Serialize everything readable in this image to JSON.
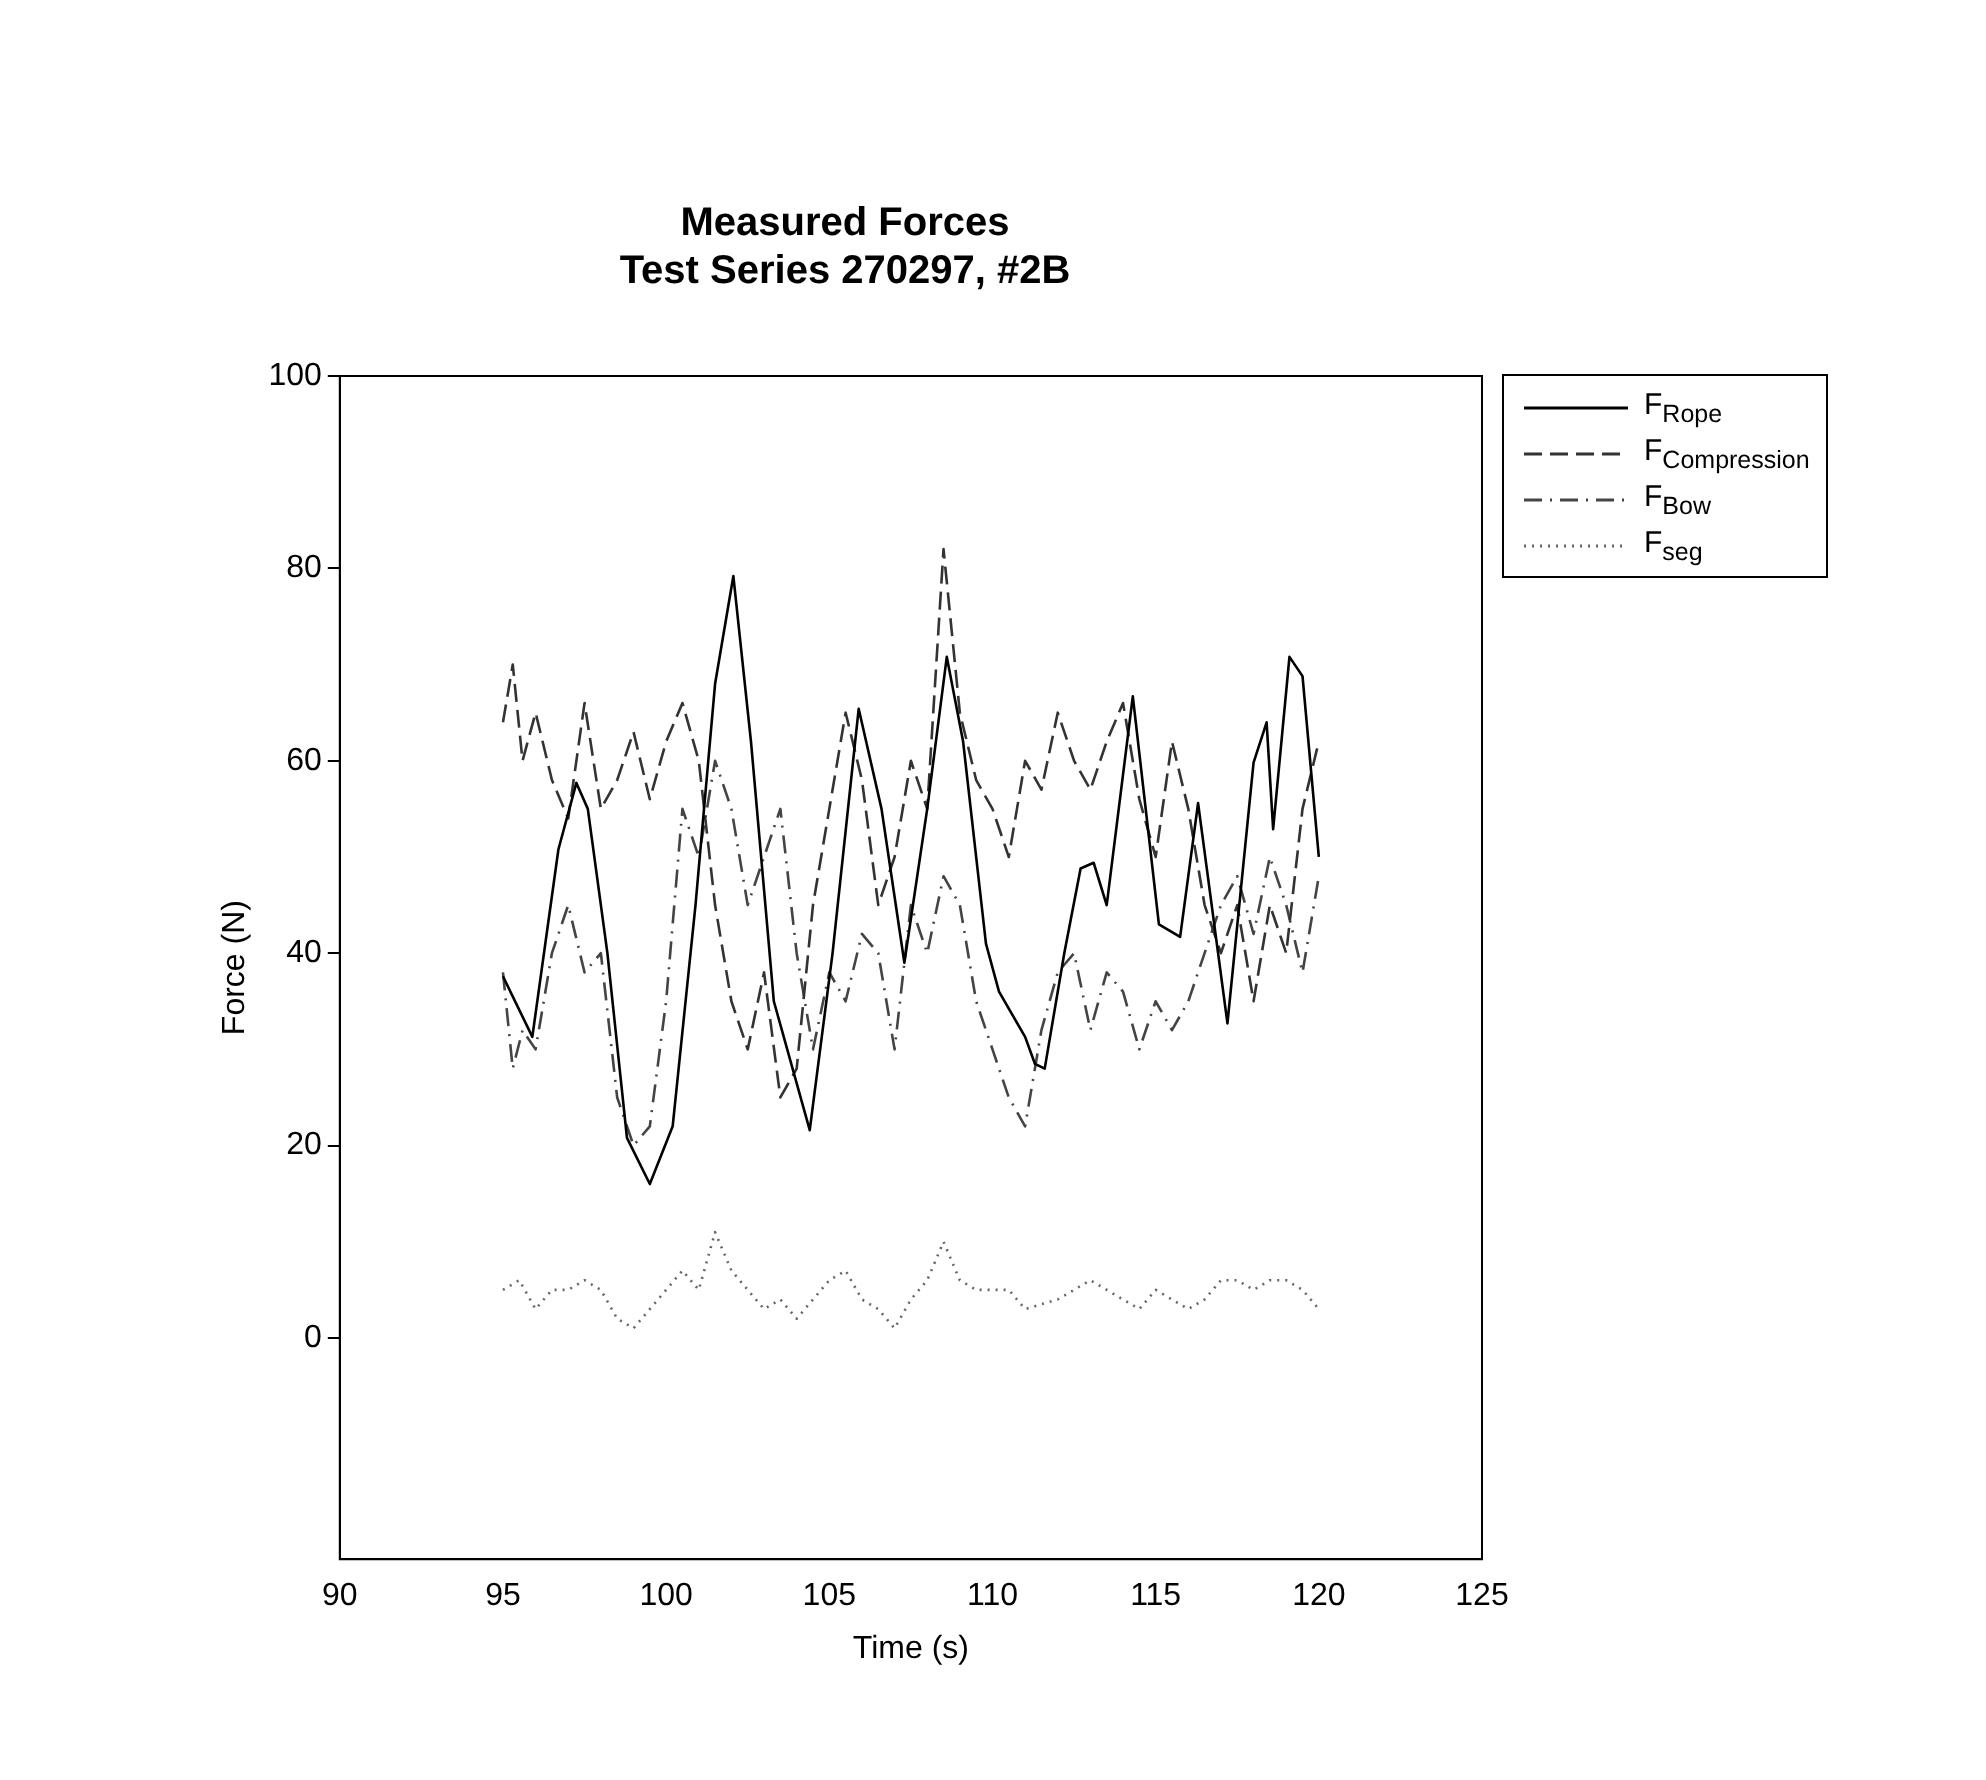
{
  "chart_data": {
    "type": "line",
    "title": "Measured Forces",
    "subtitle": "Test Series 270297, #2B",
    "xlabel": "Time (s)",
    "ylabel": "Force (N)",
    "xlim": [
      90,
      125
    ],
    "xticks": [
      90,
      95,
      100,
      105,
      110,
      115,
      120,
      125
    ],
    "ylim": [
      -23,
      100
    ],
    "yticks": [
      0,
      20,
      40,
      60,
      80,
      100
    ],
    "grid": false,
    "legend": "right",
    "marker": "none",
    "series": [
      {
        "name": "F$_{Rope}$",
        "color": "#000000",
        "line_style": "solid",
        "x": [
          95,
          95.9,
          96.7,
          97.25,
          97.6,
          98.2,
          98.8,
          99.5,
          100.2,
          100.9,
          101.5,
          102.06,
          102.6,
          103.3,
          104.4,
          105.1,
          105.9,
          106.6,
          107.3,
          108,
          108.6,
          109.1,
          109.8,
          110.2,
          111,
          111.3,
          111.6,
          112.2,
          112.7,
          113.1,
          113.5,
          114.3,
          115.1,
          115.75,
          116.3,
          117.2,
          118,
          118.4,
          118.6,
          119.1,
          119.5,
          120
        ],
        "values": [
          37.6,
          31.3,
          50.8,
          57.7,
          55,
          40,
          20.8,
          16,
          22,
          45,
          68,
          79.2,
          62,
          35,
          21.6,
          40,
          65.4,
          55,
          39,
          55,
          70.8,
          62,
          41,
          36,
          31.3,
          28.5,
          28,
          40,
          48.8,
          49.4,
          45,
          66.7,
          43,
          41.7,
          55.6,
          32.7,
          59.8,
          64,
          52.9,
          70.8,
          68.8,
          50
        ]
      },
      {
        "name": "F$_{Compression}$",
        "color": "#333333",
        "line_style": "dashed",
        "x": [
          95,
          95.3,
          95.6,
          96,
          96.5,
          97,
          97.5,
          98,
          98.5,
          99,
          99.5,
          100,
          100.5,
          101,
          101.5,
          102,
          102.5,
          103,
          103.5,
          104,
          104.5,
          105,
          105.5,
          106,
          106.5,
          107,
          107.5,
          108,
          108.5,
          109,
          109.5,
          110,
          110.5,
          111,
          111.5,
          112,
          112.5,
          113,
          113.5,
          114,
          114.5,
          115,
          115.5,
          116,
          116.5,
          117,
          117.5,
          118,
          118.5,
          119,
          119.5,
          120
        ],
        "values": [
          64,
          70,
          60,
          65,
          58,
          54,
          66,
          55,
          58,
          63,
          56,
          62,
          66,
          60,
          45,
          35,
          30,
          38,
          25,
          28,
          45,
          55,
          65,
          58,
          45,
          50,
          60,
          55,
          82,
          65,
          58,
          55,
          50,
          60,
          57,
          65,
          60,
          57,
          62,
          66,
          56,
          50,
          62,
          55,
          45,
          40,
          45,
          35,
          45,
          40,
          55,
          62
        ]
      },
      {
        "name": "F$_{Bow}$",
        "color": "#444444",
        "line_style": "dashdot",
        "x": [
          95,
          95.3,
          95.6,
          96,
          96.5,
          97,
          97.5,
          98,
          98.5,
          99,
          99.5,
          100,
          100.5,
          101,
          101.5,
          102,
          102.5,
          103,
          103.5,
          104,
          104.5,
          105,
          105.5,
          106,
          106.5,
          107,
          107.5,
          108,
          108.5,
          109,
          109.5,
          110,
          110.5,
          111,
          111.5,
          112,
          112.5,
          113,
          113.5,
          114,
          114.5,
          115,
          115.5,
          116,
          116.5,
          117,
          117.5,
          118,
          118.5,
          119,
          119.5,
          120
        ],
        "values": [
          38,
          28,
          32,
          30,
          40,
          45,
          38,
          40,
          25,
          20,
          22,
          35,
          55,
          50,
          60,
          55,
          45,
          50,
          55,
          40,
          30,
          38,
          35,
          42,
          40,
          30,
          45,
          40,
          48,
          45,
          35,
          30,
          25,
          22,
          32,
          38,
          40,
          32,
          38,
          36,
          30,
          35,
          32,
          35,
          40,
          45,
          48,
          42,
          50,
          45,
          38,
          48
        ]
      },
      {
        "name": "F$_{seg}$",
        "color": "#666666",
        "line_style": "dotted",
        "x": [
          95,
          95.5,
          96,
          96.5,
          97,
          97.5,
          98,
          98.5,
          99,
          99.5,
          100,
          100.5,
          101,
          101.5,
          102,
          102.5,
          103,
          103.5,
          104,
          104.5,
          105,
          105.5,
          106,
          106.5,
          107,
          107.5,
          108,
          108.5,
          109,
          109.5,
          110,
          110.5,
          111,
          112,
          112.5,
          113,
          113.5,
          114,
          114.5,
          115,
          115.5,
          116,
          116.5,
          117,
          117.5,
          118,
          118.5,
          119,
          119.5,
          120
        ],
        "values": [
          5,
          6,
          3,
          5,
          5,
          6,
          5,
          2,
          1,
          3,
          5,
          7,
          5,
          11,
          7,
          5,
          3,
          4,
          2,
          4,
          6,
          7,
          4,
          3,
          1,
          4,
          6,
          10,
          6,
          5,
          5,
          5,
          3,
          4,
          5,
          6,
          5,
          4,
          3,
          5,
          4,
          3,
          4,
          6,
          6,
          5,
          6,
          6,
          5,
          3
        ]
      }
    ]
  }
}
